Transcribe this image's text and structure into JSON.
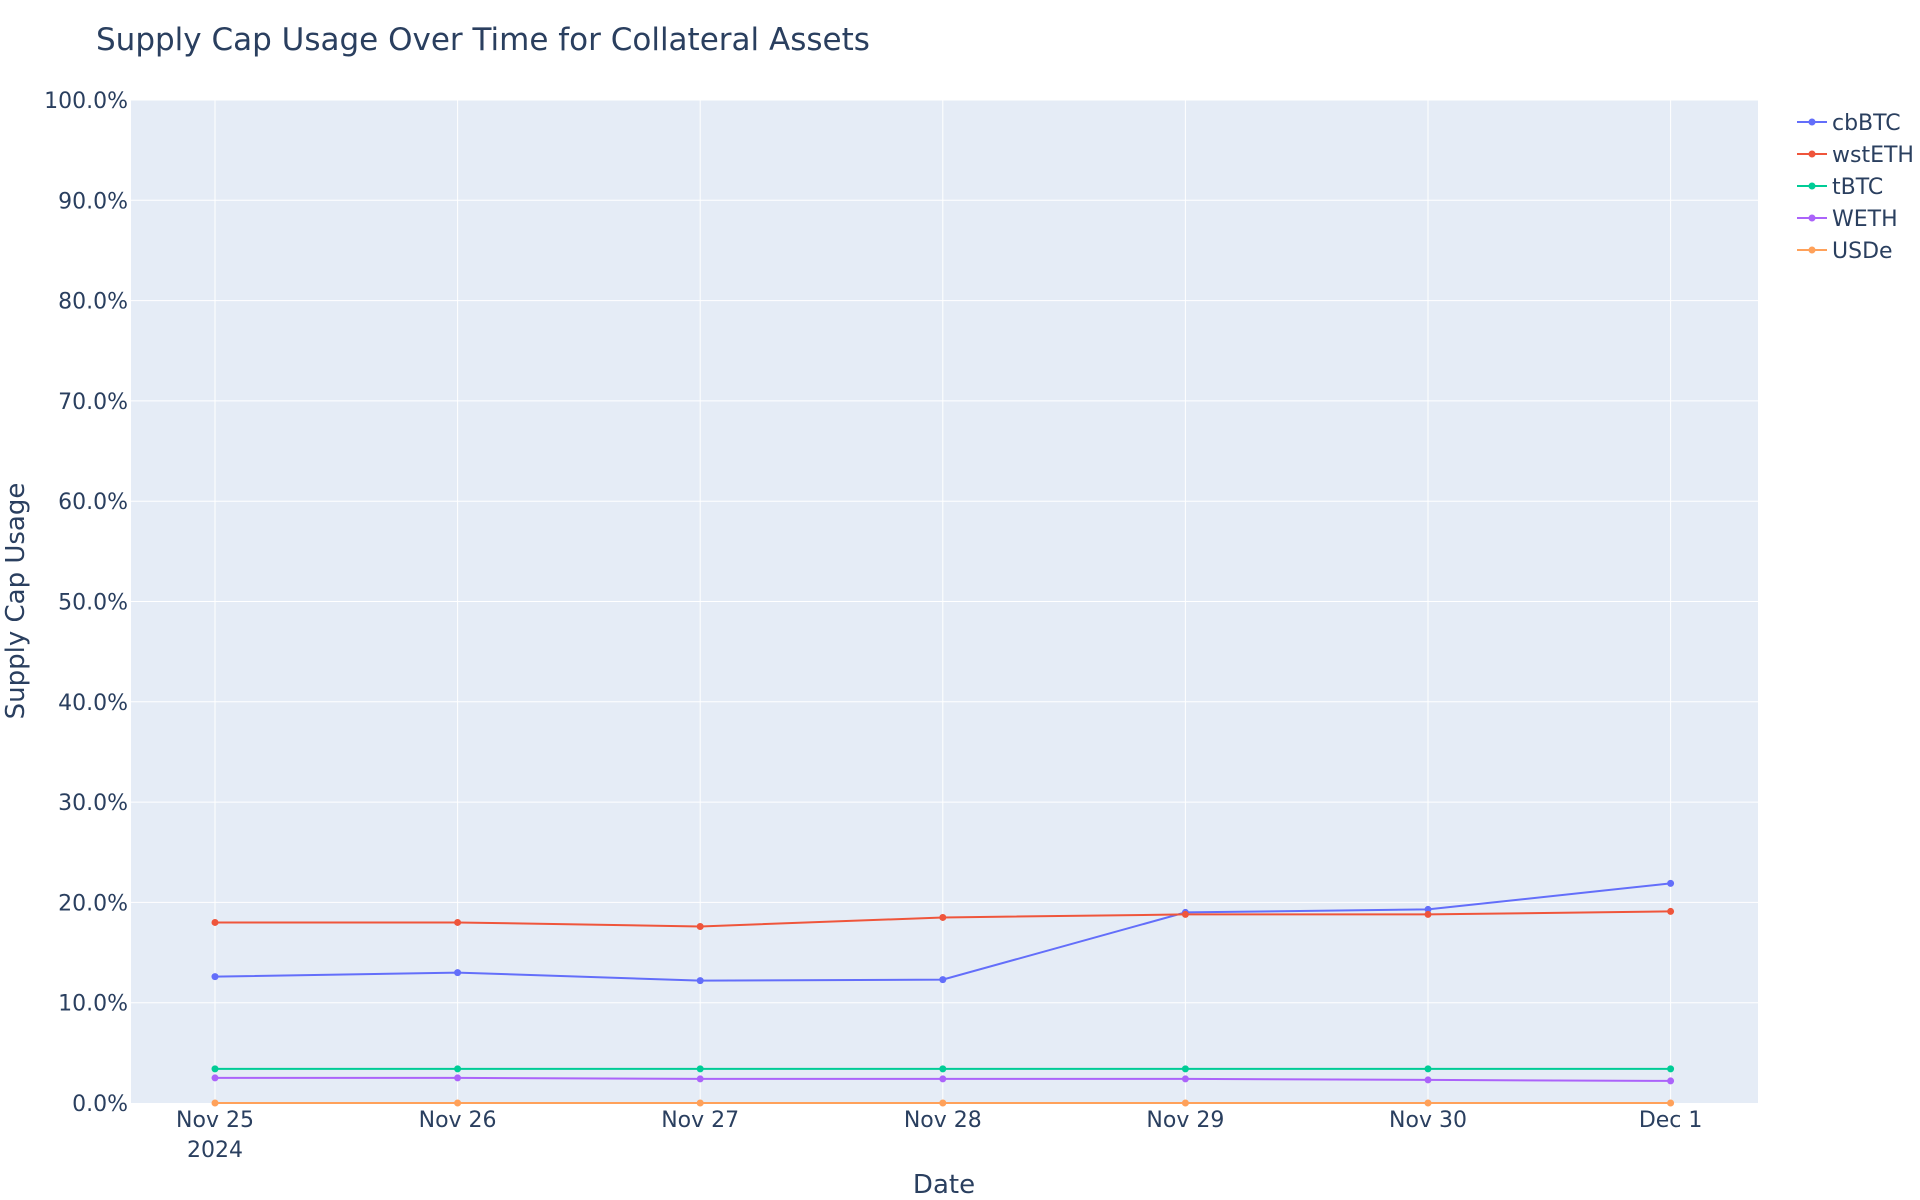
{
  "chart_data": {
    "type": "line",
    "title": "Supply Cap Usage Over Time for Collateral Assets",
    "xlabel": "Date",
    "ylabel": "Supply Cap Usage",
    "x": [
      "2024-11-25",
      "2024-11-26",
      "2024-11-27",
      "2024-11-28",
      "2024-11-29",
      "2024-11-30",
      "2024-12-01"
    ],
    "x_tick_labels": [
      "Nov 25",
      "Nov 26",
      "Nov 27",
      "Nov 28",
      "Nov 29",
      "Nov 30",
      "Dec 1"
    ],
    "x_year_label": "2024",
    "ylim": [
      0,
      100
    ],
    "y_tick_labels": [
      "0.0%",
      "10.0%",
      "20.0%",
      "30.0%",
      "40.0%",
      "50.0%",
      "60.0%",
      "70.0%",
      "80.0%",
      "90.0%",
      "100.0%"
    ],
    "y_unit": "percent",
    "grid": true,
    "legend_position": "top-right",
    "plot_background": "#e5ecf6",
    "series": [
      {
        "name": "cbBTC",
        "color": "#636efa",
        "values": [
          12.6,
          13.0,
          12.2,
          12.3,
          19.0,
          19.3,
          21.9
        ]
      },
      {
        "name": "wstETH",
        "color": "#ef553b",
        "values": [
          18.0,
          18.0,
          17.6,
          18.5,
          18.8,
          18.8,
          19.1
        ]
      },
      {
        "name": "tBTC",
        "color": "#00cc96",
        "values": [
          3.4,
          3.4,
          3.4,
          3.4,
          3.4,
          3.4,
          3.4
        ]
      },
      {
        "name": "WETH",
        "color": "#ab63fa",
        "values": [
          2.5,
          2.5,
          2.4,
          2.4,
          2.4,
          2.3,
          2.2
        ]
      },
      {
        "name": "USDe",
        "color": "#ffa15a",
        "values": [
          0.0,
          0.0,
          0.0,
          0.0,
          0.0,
          0.0,
          0.0
        ]
      }
    ]
  }
}
